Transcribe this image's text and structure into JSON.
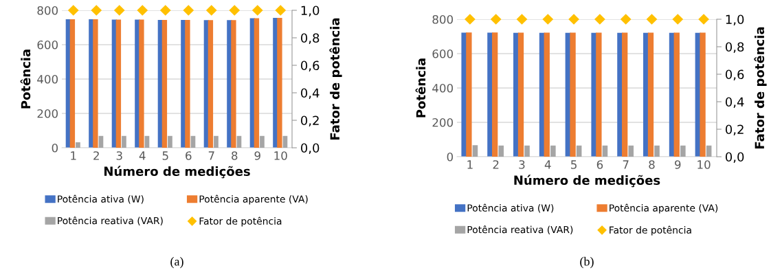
{
  "chart_data": [
    {
      "type": "bar",
      "xlabel": "Número de medições",
      "ylabel": "Potência",
      "y2label": "Fator de potência",
      "categories": [
        "1",
        "2",
        "3",
        "4",
        "5",
        "6",
        "7",
        "8",
        "9",
        "10"
      ],
      "series": [
        {
          "name": "Potência ativa (W)",
          "color": "#4472c4",
          "values": [
            748,
            748,
            746,
            746,
            744,
            744,
            743,
            743,
            754,
            756
          ]
        },
        {
          "name": "Potência aparente (VA)",
          "color": "#ed7d31",
          "values": [
            748,
            748,
            746,
            746,
            744,
            744,
            743,
            743,
            754,
            756
          ]
        },
        {
          "name": "Potência reativa (VAR)",
          "color": "#a5a5a5",
          "values": [
            32,
            69,
            69,
            69,
            69,
            69,
            69,
            69,
            69,
            69
          ]
        },
        {
          "name": "Fator de potência",
          "type": "scatter",
          "axis": "y2",
          "marker": "diamond",
          "color": "#ffc000",
          "values": [
            1.0,
            1.0,
            1.0,
            1.0,
            1.0,
            1.0,
            1.0,
            1.0,
            1.0,
            1.0
          ]
        }
      ],
      "ylim": [
        0,
        800
      ],
      "yticks": [
        0,
        200,
        400,
        600,
        800
      ],
      "y2lim": [
        0,
        1.0
      ],
      "y2ticks": [
        {
          "value": 0,
          "label": "0,0"
        },
        {
          "value": 0.2,
          "label": "0,2"
        },
        {
          "value": 0.4,
          "label": "0,4"
        },
        {
          "value": 0.6,
          "label": "0,6"
        },
        {
          "value": 0.8,
          "label": "0,8"
        },
        {
          "value": 1.0,
          "label": "1,0"
        }
      ],
      "grid": "y",
      "legend": "bottom",
      "annotations": [
        "(a)"
      ]
    },
    {
      "type": "bar",
      "xlabel": "Número de medições",
      "ylabel": "Potência",
      "y2label": "Fator de potência",
      "categories": [
        "1",
        "2",
        "3",
        "4",
        "5",
        "6",
        "7",
        "8",
        "9",
        "10"
      ],
      "series": [
        {
          "name": "Potência ativa (W)",
          "color": "#4472c4",
          "values": [
            722,
            722,
            721,
            721,
            721,
            721,
            721,
            721,
            721,
            721
          ]
        },
        {
          "name": "Potência aparente (VA)",
          "color": "#ed7d31",
          "values": [
            723,
            723,
            722,
            722,
            722,
            722,
            722,
            722,
            722,
            722
          ]
        },
        {
          "name": "Potência reativa (VAR)",
          "color": "#a5a5a5",
          "values": [
            67,
            65,
            65,
            65,
            65,
            65,
            65,
            65,
            65,
            65
          ]
        },
        {
          "name": "Fator de potência",
          "type": "scatter",
          "axis": "y2",
          "marker": "diamond",
          "color": "#ffc000",
          "values": [
            1.0,
            1.0,
            1.0,
            1.0,
            1.0,
            1.0,
            1.0,
            1.0,
            1.0,
            1.0
          ]
        }
      ],
      "ylim": [
        0,
        800
      ],
      "yticks": [
        0,
        200,
        400,
        600,
        800
      ],
      "y2lim": [
        0,
        1.0
      ],
      "y2ticks": [
        {
          "value": 0,
          "label": "0,0"
        },
        {
          "value": 0.2,
          "label": "0,2"
        },
        {
          "value": 0.4,
          "label": "0,4"
        },
        {
          "value": 0.6,
          "label": "0,6"
        },
        {
          "value": 0.8,
          "label": "0,8"
        },
        {
          "value": 1.0,
          "label": "1,0"
        }
      ],
      "grid": "y",
      "legend": "bottom",
      "annotations": [
        "(b)"
      ]
    }
  ]
}
